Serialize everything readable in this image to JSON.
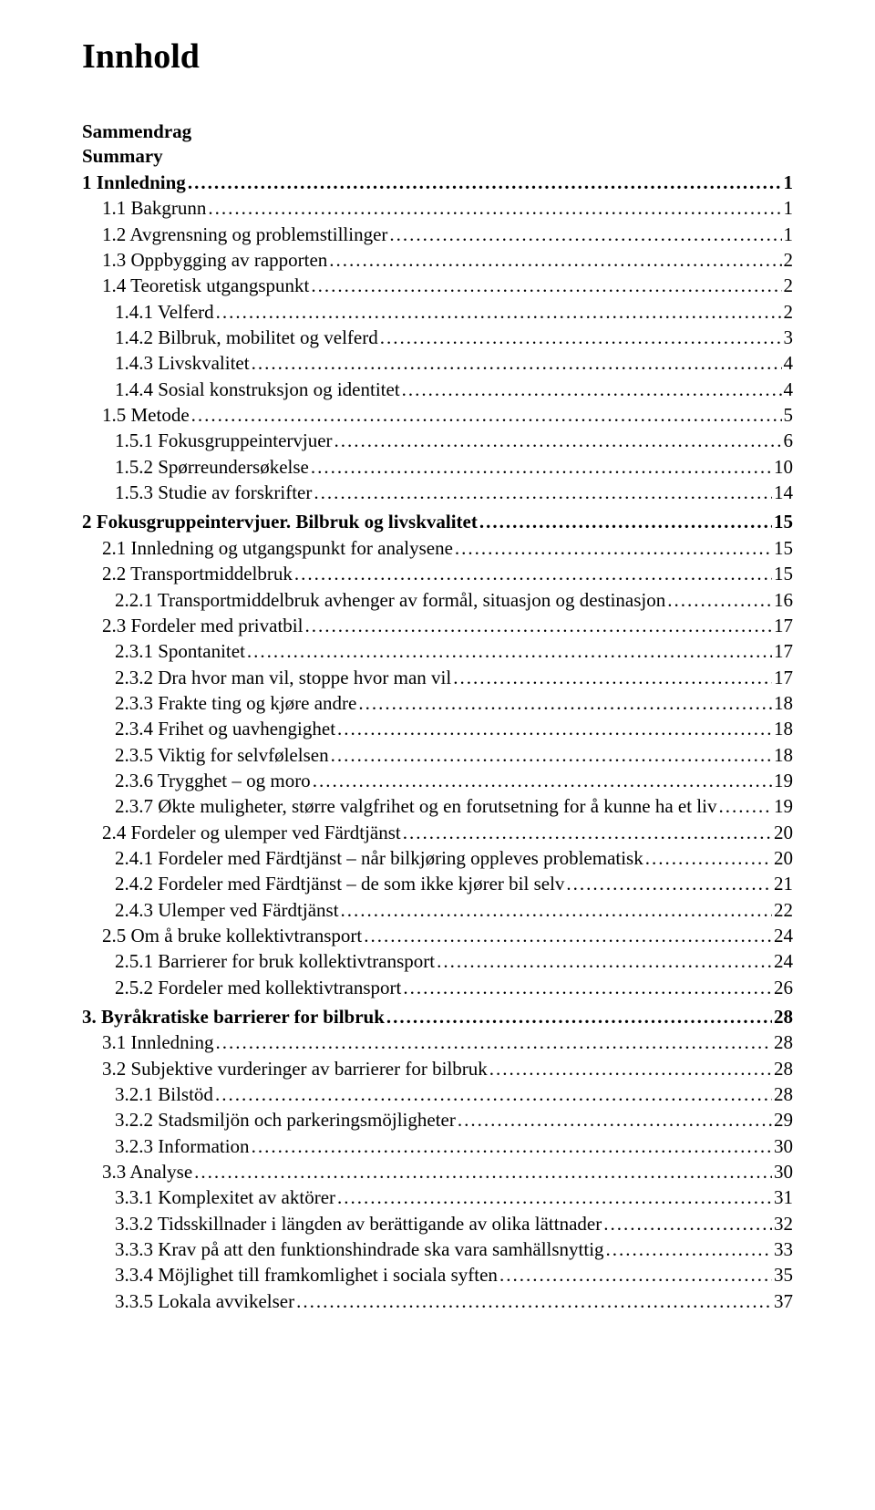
{
  "title": "Innhold",
  "prelim": [
    "Sammendrag",
    "Summary"
  ],
  "toc": [
    {
      "level": 0,
      "label": "1 Innledning",
      "page": "1"
    },
    {
      "level": 1,
      "label": "1.1 Bakgrunn",
      "page": "1"
    },
    {
      "level": 1,
      "label": "1.2 Avgrensning og problemstillinger",
      "page": "1"
    },
    {
      "level": 1,
      "label": "1.3 Oppbygging av rapporten",
      "page": "2"
    },
    {
      "level": 1,
      "label": "1.4 Teoretisk utgangspunkt",
      "page": "2"
    },
    {
      "level": 2,
      "label": "1.4.1 Velferd",
      "page": "2"
    },
    {
      "level": 2,
      "label": "1.4.2 Bilbruk, mobilitet og velferd",
      "page": "3"
    },
    {
      "level": 2,
      "label": "1.4.3 Livskvalitet",
      "page": "4"
    },
    {
      "level": 2,
      "label": "1.4.4 Sosial konstruksjon og identitet",
      "page": "4"
    },
    {
      "level": 1,
      "label": "1.5 Metode",
      "page": "5"
    },
    {
      "level": 2,
      "label": "1.5.1 Fokusgruppeintervjuer",
      "page": "6"
    },
    {
      "level": 2,
      "label": "1.5.2 Spørreundersøkelse",
      "page": "10"
    },
    {
      "level": 2,
      "label": "1.5.3 Studie av forskrifter",
      "page": "14"
    },
    {
      "level": 0,
      "label": "2 Fokusgruppeintervjuer. Bilbruk og livskvalitet",
      "page": "15"
    },
    {
      "level": 1,
      "label": "2.1 Innledning og utgangspunkt for analysene",
      "page": "15"
    },
    {
      "level": 1,
      "label": "2.2 Transportmiddelbruk",
      "page": "15"
    },
    {
      "level": 2,
      "label": "2.2.1 Transportmiddelbruk avhenger av formål, situasjon og destinasjon",
      "page": "16"
    },
    {
      "level": 1,
      "label": "2.3 Fordeler med privatbil",
      "page": "17"
    },
    {
      "level": 2,
      "label": "2.3.1 Spontanitet",
      "page": "17"
    },
    {
      "level": 2,
      "label": "2.3.2 Dra hvor man vil, stoppe hvor man vil",
      "page": "17"
    },
    {
      "level": 2,
      "label": "2.3.3 Frakte ting og kjøre andre",
      "page": "18"
    },
    {
      "level": 2,
      "label": "2.3.4 Frihet og uavhengighet",
      "page": "18"
    },
    {
      "level": 2,
      "label": "2.3.5 Viktig for selvfølelsen",
      "page": "18"
    },
    {
      "level": 2,
      "label": "2.3.6 Trygghet – og moro",
      "page": "19"
    },
    {
      "level": 2,
      "label": "2.3.7 Økte muligheter, større valgfrihet og en forutsetning for å kunne ha et liv",
      "page": "19"
    },
    {
      "level": 1,
      "label": "2.4 Fordeler og ulemper ved Färdtjänst",
      "page": "20"
    },
    {
      "level": 2,
      "label": "2.4.1 Fordeler med Färdtjänst – når bilkjøring oppleves problematisk",
      "page": "20"
    },
    {
      "level": 2,
      "label": "2.4.2 Fordeler med Färdtjänst – de som ikke kjører bil selv",
      "page": "21"
    },
    {
      "level": 2,
      "label": "2.4.3 Ulemper ved Färdtjänst",
      "page": "22"
    },
    {
      "level": 1,
      "label": "2.5 Om å bruke kollektivtransport",
      "page": "24"
    },
    {
      "level": 2,
      "label": "2.5.1 Barrierer for bruk kollektivtransport",
      "page": "24"
    },
    {
      "level": 2,
      "label": "2.5.2 Fordeler med kollektivtransport",
      "page": "26"
    },
    {
      "level": 0,
      "label": "3. Byråkratiske barrierer for bilbruk",
      "page": "28"
    },
    {
      "level": 1,
      "label": "3.1 Innledning",
      "page": "28"
    },
    {
      "level": 1,
      "label": "3.2 Subjektive vurderinger av barrierer for bilbruk",
      "page": "28"
    },
    {
      "level": 2,
      "label": "3.2.1 Bilstöd",
      "page": "28"
    },
    {
      "level": 2,
      "label": "3.2.2 Stadsmiljön och parkeringsmöjligheter",
      "page": "29"
    },
    {
      "level": 2,
      "label": "3.2.3 Information",
      "page": "30"
    },
    {
      "level": 1,
      "label": "3.3 Analyse",
      "page": "30"
    },
    {
      "level": 2,
      "label": "3.3.1 Komplexitet av aktörer",
      "page": "31"
    },
    {
      "level": 2,
      "label": "3.3.2 Tidsskillnader i längden av berättigande av olika lättnader",
      "page": "32"
    },
    {
      "level": 2,
      "label": "3.3.3 Krav på att den funktionshindrade ska vara samhällsnyttig",
      "page": "33"
    },
    {
      "level": 2,
      "label": "3.3.4 Möjlighet till framkomlighet i sociala syften",
      "page": "35"
    },
    {
      "level": 2,
      "label": "3.3.5 Lokala avvikelser",
      "page": "37"
    }
  ]
}
